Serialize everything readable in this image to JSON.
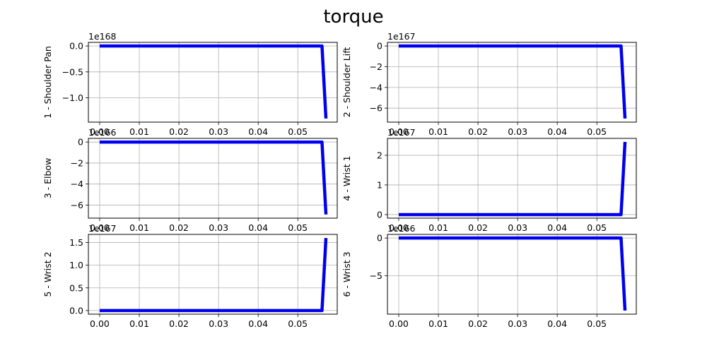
{
  "figure_title": "torque",
  "colors": {
    "series": "#0000ee"
  },
  "chart_data": [
    {
      "type": "line",
      "ylabel": "1 - Shoulder Pan",
      "offset_text": "1e168",
      "x": [
        0.0,
        0.0561,
        0.0571
      ],
      "y": [
        0.0,
        0.0,
        -1.4
      ],
      "xlim": [
        -0.00285,
        0.05995
      ],
      "ylim": [
        -1.47,
        0.07
      ],
      "xticks": [
        0.0,
        0.01,
        0.02,
        0.03,
        0.04,
        0.05
      ],
      "xtick_labels": [
        "0.00",
        "0.01",
        "0.02",
        "0.03",
        "0.04",
        "0.05"
      ],
      "yticks": [
        0.0,
        -0.5,
        -1.0
      ],
      "ytick_labels": [
        "0.0",
        "−0.5",
        "−1.0"
      ],
      "grid": true
    },
    {
      "type": "line",
      "ylabel": "2 - Shoulder Lift",
      "offset_text": "1e167",
      "x": [
        0.0,
        0.0561,
        0.0571
      ],
      "y": [
        0.0,
        0.0,
        -7.0
      ],
      "xlim": [
        -0.00285,
        0.05995
      ],
      "ylim": [
        -7.35,
        0.35
      ],
      "xticks": [
        0.0,
        0.01,
        0.02,
        0.03,
        0.04,
        0.05
      ],
      "xtick_labels": [
        "0.00",
        "0.01",
        "0.02",
        "0.03",
        "0.04",
        "0.05"
      ],
      "yticks": [
        0,
        -2,
        -4,
        -6
      ],
      "ytick_labels": [
        "0",
        "−2",
        "−4",
        "−6"
      ],
      "grid": true
    },
    {
      "type": "line",
      "ylabel": "3 - Elbow",
      "offset_text": "1e166",
      "x": [
        0.0,
        0.0561,
        0.0571
      ],
      "y": [
        0.0,
        0.0,
        -6.9
      ],
      "xlim": [
        -0.00285,
        0.05995
      ],
      "ylim": [
        -7.25,
        0.35
      ],
      "xticks": [
        0.0,
        0.01,
        0.02,
        0.03,
        0.04,
        0.05
      ],
      "xtick_labels": [
        "0.00",
        "0.01",
        "0.02",
        "0.03",
        "0.04",
        "0.05"
      ],
      "yticks": [
        0,
        -2,
        -4,
        -6
      ],
      "ytick_labels": [
        "0",
        "−2",
        "−4",
        "−6"
      ],
      "grid": true
    },
    {
      "type": "line",
      "ylabel": "4 - Wrist 1",
      "offset_text": "1e167",
      "x": [
        0.0,
        0.0561,
        0.0571
      ],
      "y": [
        0.0,
        0.0,
        2.45
      ],
      "xlim": [
        -0.00285,
        0.05995
      ],
      "ylim": [
        -0.12,
        2.57
      ],
      "xticks": [
        0.0,
        0.01,
        0.02,
        0.03,
        0.04,
        0.05
      ],
      "xtick_labels": [
        "0.00",
        "0.01",
        "0.02",
        "0.03",
        "0.04",
        "0.05"
      ],
      "yticks": [
        0,
        1,
        2
      ],
      "ytick_labels": [
        "0",
        "1",
        "2"
      ],
      "grid": true
    },
    {
      "type": "line",
      "ylabel": "5 - Wrist 2",
      "offset_text": "1e167",
      "x": [
        0.0,
        0.0561,
        0.0571
      ],
      "y": [
        0.0,
        0.0,
        1.6
      ],
      "xlim": [
        -0.00285,
        0.05995
      ],
      "ylim": [
        -0.08,
        1.68
      ],
      "xticks": [
        0.0,
        0.01,
        0.02,
        0.03,
        0.04,
        0.05
      ],
      "xtick_labels": [
        "0.00",
        "0.01",
        "0.02",
        "0.03",
        "0.04",
        "0.05"
      ],
      "yticks": [
        0.0,
        0.5,
        1.0,
        1.5
      ],
      "ytick_labels": [
        "0.0",
        "0.5",
        "1.0",
        "1.5"
      ],
      "grid": true
    },
    {
      "type": "line",
      "ylabel": "6 - Wrist 3",
      "offset_text": "1e166",
      "x": [
        0.0,
        0.0561,
        0.0571
      ],
      "y": [
        0.0,
        0.0,
        -9.6
      ],
      "xlim": [
        -0.00285,
        0.05995
      ],
      "ylim": [
        -10.08,
        0.48
      ],
      "xticks": [
        0.0,
        0.01,
        0.02,
        0.03,
        0.04,
        0.05
      ],
      "xtick_labels": [
        "0.00",
        "0.01",
        "0.02",
        "0.03",
        "0.04",
        "0.05"
      ],
      "yticks": [
        0,
        -5
      ],
      "ytick_labels": [
        "0",
        "−5"
      ],
      "grid": true
    }
  ]
}
